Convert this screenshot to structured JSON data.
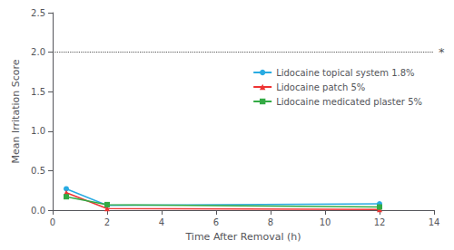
{
  "chart_data": {
    "type": "line",
    "xlabel": "Time After Removal (h)",
    "ylabel": "Mean Irritation Score",
    "x": [
      0.5,
      2,
      12
    ],
    "series": [
      {
        "name": "Lidocaine topical system 1.8%",
        "color": "#29ABE2",
        "marker": "circle",
        "line_style": "solid",
        "values": [
          0.27,
          0.06,
          0.08
        ]
      },
      {
        "name": "Lidocaine patch 5%",
        "color": "#EE3333",
        "marker": "triangle",
        "line_style": "solid",
        "values": [
          0.22,
          0.02,
          0.01
        ]
      },
      {
        "name": "Lidocaine medicated plaster 5%",
        "color": "#33AA44",
        "marker": "square",
        "line_style": "solid",
        "values": [
          0.17,
          0.07,
          0.04
        ]
      }
    ],
    "xlim": [
      0,
      14
    ],
    "xticks": [
      0,
      2,
      4,
      6,
      8,
      10,
      12,
      14
    ],
    "ylim": [
      0,
      2.5
    ],
    "yticks": [
      {
        "value": 0,
        "label": "0.0"
      },
      0.5,
      {
        "value": 1.0,
        "label": "1.0"
      },
      {
        "value": 1.5,
        "label": "1.5"
      },
      {
        "value": 2.0,
        "label": "2.0"
      },
      {
        "value": 2.5,
        "label": "2.5"
      }
    ],
    "annotations": [
      {
        "text": "*",
        "y": 2.0,
        "color": "#555555",
        "line_style": "dotted"
      }
    ],
    "legend": "right",
    "grid": false
  }
}
